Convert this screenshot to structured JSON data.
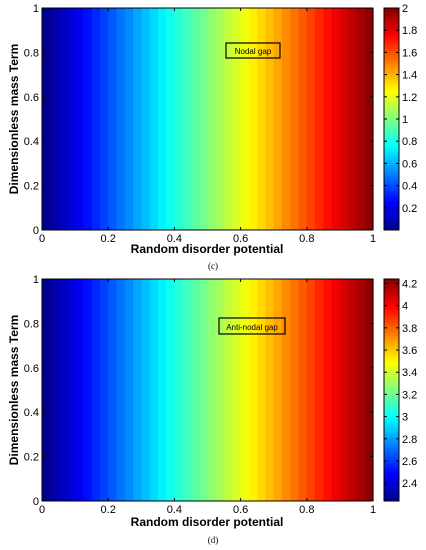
{
  "chart_data": [
    {
      "type": "heatmap",
      "caption": "(c)",
      "xlabel": "Random disorder potential",
      "ylabel": "Dimensionless mass Term",
      "xlim": [
        0,
        1
      ],
      "ylim": [
        0,
        1
      ],
      "x_ticks": [
        "0",
        "0.2",
        "0.4",
        "0.6",
        "0.8",
        "1"
      ],
      "y_ticks": [
        "0",
        "0.2",
        "0.4",
        "0.6",
        "0.8",
        "1"
      ],
      "colorbar": {
        "min": 0,
        "max": 2,
        "ticks": [
          "0.2",
          "0.4",
          "0.6",
          "0.8",
          "1",
          "1.2",
          "1.4",
          "1.6",
          "1.8",
          "2"
        ]
      },
      "field": "value varies linearly with Random disorder potential, independent of Dimensionless mass Term: value = 2 * x",
      "x_grid": [
        0,
        0.1,
        0.2,
        0.3,
        0.4,
        0.5,
        0.6,
        0.7,
        0.8,
        0.9,
        1.0
      ],
      "values": [
        0,
        0.2,
        0.4,
        0.6,
        0.8,
        1.0,
        1.2,
        1.4,
        1.6,
        1.8,
        2.0
      ],
      "annotation": "Nodal gap",
      "colormap": "jet",
      "grid": false
    },
    {
      "type": "heatmap",
      "caption": "(d)",
      "xlabel": "Random disorder potential",
      "ylabel": "Dimensionless mass Term",
      "xlim": [
        0,
        1
      ],
      "ylim": [
        0,
        1
      ],
      "x_ticks": [
        "0",
        "0.2",
        "0.4",
        "0.6",
        "0.8",
        "1"
      ],
      "y_ticks": [
        "0",
        "0.2",
        "0.4",
        "0.6",
        "0.8",
        "1"
      ],
      "colorbar": {
        "min": 2.24,
        "max": 4.24,
        "ticks": [
          "2.4",
          "2.6",
          "2.8",
          "3",
          "3.2",
          "3.4",
          "3.6",
          "3.8",
          "4",
          "4.2"
        ]
      },
      "field": "value varies linearly with Random disorder potential, independent of Dimensionless mass Term: value = 2.24 + 2 * x",
      "x_grid": [
        0,
        0.1,
        0.2,
        0.3,
        0.4,
        0.5,
        0.6,
        0.7,
        0.8,
        0.9,
        1.0
      ],
      "values": [
        2.24,
        2.44,
        2.64,
        2.84,
        3.04,
        3.24,
        3.44,
        3.64,
        3.84,
        4.04,
        4.24
      ],
      "annotation": "Anti-nodal gap",
      "colormap": "jet",
      "grid": false
    }
  ]
}
